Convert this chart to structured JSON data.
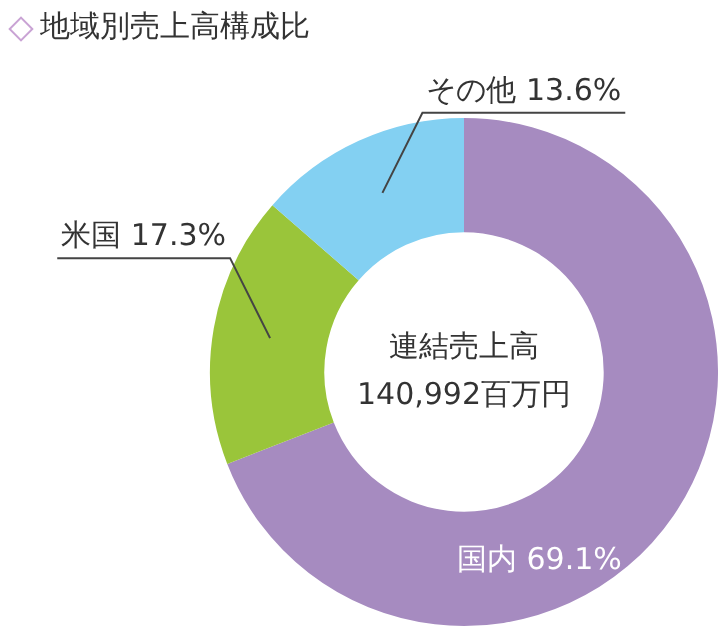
{
  "chart_data": {
    "type": "donut",
    "title": "地域別売上高構成比",
    "categories": [
      "国内",
      "米国",
      "その他"
    ],
    "values": [
      69.1,
      17.3,
      13.6
    ],
    "value_labels": [
      "69.1%",
      "17.3%",
      "13.6%"
    ],
    "colors": [
      "#a68bc0",
      "#9ac53a",
      "#83d0f2"
    ],
    "annotations": [
      "連結売上高",
      "140,992百万円"
    ],
    "legend": false
  }
}
